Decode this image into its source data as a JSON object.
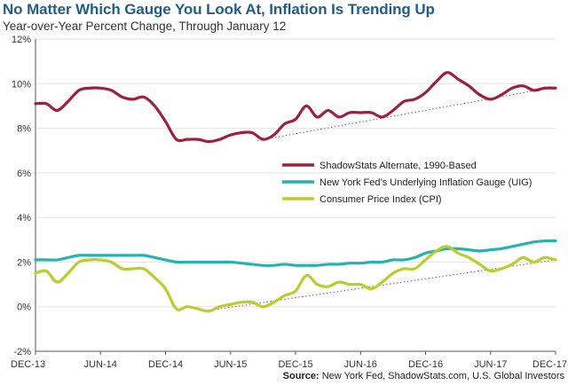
{
  "title": "No Matter Which Gauge You Look At, Inflation Is Trending Up",
  "subtitle": "Year-over-Year Percent Change, Through January 12",
  "source_label": "Source:",
  "source_text": "New York Fed, ShadowStats.com, U.S. Global Investors",
  "chart_data": {
    "type": "line",
    "x_ticks": [
      "DEC-13",
      "JUN-14",
      "DEC-14",
      "JUN-15",
      "DEC-15",
      "JUN-16",
      "DEC-16",
      "JUN-17",
      "DEC-17"
    ],
    "y_ticks": [
      "12%",
      "10%",
      "8%",
      "6%",
      "4%",
      "2%",
      "0%",
      "-2%"
    ],
    "ylim": [
      -2,
      12
    ],
    "xlim": [
      0,
      48
    ],
    "x_unit": "months since DEC-13",
    "legend_position": "center-right",
    "series": [
      {
        "name": "ShadowStats Alternate, 1990-Based",
        "color": "#a0203a",
        "x": [
          0,
          1,
          2,
          3,
          4,
          5,
          6,
          7,
          8,
          9,
          10,
          11,
          12,
          13,
          14,
          15,
          16,
          17,
          18,
          19,
          20,
          21,
          22,
          23,
          24,
          25,
          26,
          27,
          28,
          29,
          30,
          31,
          32,
          33,
          34,
          35,
          36,
          37,
          38,
          39,
          40,
          41,
          42,
          43,
          44,
          45,
          46,
          47,
          48
        ],
        "values": [
          9.1,
          9.1,
          8.8,
          9.2,
          9.7,
          9.8,
          9.8,
          9.7,
          9.4,
          9.3,
          9.4,
          9.0,
          8.3,
          7.5,
          7.5,
          7.5,
          7.4,
          7.5,
          7.7,
          7.8,
          7.8,
          7.5,
          7.7,
          8.2,
          8.4,
          9.0,
          8.5,
          8.8,
          8.5,
          8.7,
          8.7,
          8.7,
          8.5,
          8.8,
          9.2,
          9.3,
          9.6,
          10.1,
          10.5,
          10.2,
          9.9,
          9.5,
          9.3,
          9.5,
          9.8,
          9.9,
          9.7,
          9.8,
          9.8
        ],
        "trend": [
          [
            20.5,
            7.45
          ],
          [
            48,
            9.85
          ]
        ]
      },
      {
        "name": "New York Fed’s Underlying Inflation Gauge (UIG)",
        "color": "#25b2b2",
        "x": [
          0,
          1,
          2,
          3,
          4,
          5,
          6,
          7,
          8,
          9,
          10,
          11,
          12,
          13,
          14,
          15,
          16,
          17,
          18,
          19,
          20,
          21,
          22,
          23,
          24,
          25,
          26,
          27,
          28,
          29,
          30,
          31,
          32,
          33,
          34,
          35,
          36,
          37,
          38,
          39,
          40,
          41,
          42,
          43,
          44,
          45,
          46,
          47,
          48
        ],
        "values": [
          2.1,
          2.1,
          2.1,
          2.2,
          2.3,
          2.3,
          2.3,
          2.3,
          2.3,
          2.3,
          2.3,
          2.2,
          2.1,
          2.0,
          2.0,
          2.0,
          2.0,
          2.0,
          2.0,
          1.95,
          1.9,
          1.85,
          1.85,
          1.9,
          1.85,
          1.85,
          1.85,
          1.9,
          1.9,
          1.95,
          1.95,
          2.0,
          2.0,
          2.1,
          2.1,
          2.2,
          2.4,
          2.5,
          2.6,
          2.6,
          2.55,
          2.5,
          2.55,
          2.6,
          2.7,
          2.8,
          2.9,
          2.95,
          2.95
        ]
      },
      {
        "name": "Consumer Price Index (CPI)",
        "color": "#b8cf2a",
        "x": [
          0,
          1,
          2,
          3,
          4,
          5,
          6,
          7,
          8,
          9,
          10,
          11,
          12,
          13,
          14,
          15,
          16,
          17,
          18,
          19,
          20,
          21,
          22,
          23,
          24,
          25,
          26,
          27,
          28,
          29,
          30,
          31,
          32,
          33,
          34,
          35,
          36,
          37,
          38,
          39,
          40,
          41,
          42,
          43,
          44,
          45,
          46,
          47,
          48
        ],
        "values": [
          1.5,
          1.6,
          1.1,
          1.5,
          2.0,
          2.1,
          2.1,
          2.0,
          1.7,
          1.7,
          1.7,
          1.3,
          0.8,
          -0.1,
          0.0,
          -0.1,
          -0.2,
          0.0,
          0.1,
          0.2,
          0.2,
          0.0,
          0.2,
          0.5,
          0.7,
          1.4,
          1.0,
          0.9,
          1.1,
          1.0,
          1.0,
          0.8,
          1.1,
          1.5,
          1.7,
          1.7,
          2.1,
          2.5,
          2.7,
          2.4,
          2.2,
          1.9,
          1.6,
          1.7,
          1.9,
          2.2,
          2.0,
          2.2,
          2.1
        ],
        "trend": [
          [
            15.5,
            -0.2
          ],
          [
            48,
            2.1
          ]
        ]
      }
    ]
  }
}
